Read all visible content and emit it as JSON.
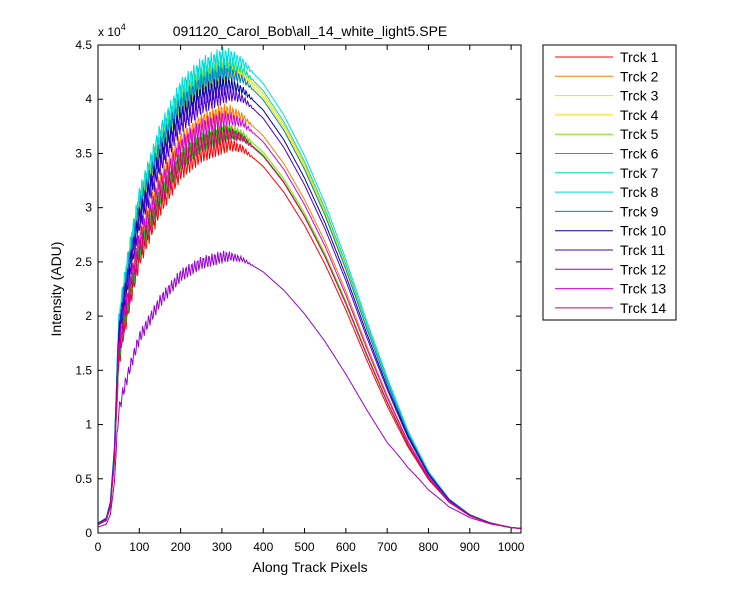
{
  "chart_data": {
    "type": "line",
    "title": "091120_Carol_Bob\\all_14_white_light5.SPE",
    "xlabel": "Along Track Pixels",
    "ylabel": "Intensity (ADU)",
    "y_multiplier": "x 10",
    "y_multiplier_exp": "4",
    "xlim": [
      0,
      1024
    ],
    "ylim": [
      0,
      45000
    ],
    "xticks": [
      0,
      100,
      200,
      300,
      400,
      500,
      600,
      700,
      800,
      900,
      1000
    ],
    "yticks": [
      0,
      5000,
      10000,
      15000,
      20000,
      25000,
      30000,
      35000,
      40000,
      45000
    ],
    "ytick_labels": [
      "0",
      "0.5",
      "1",
      "1.5",
      "2",
      "2.5",
      "3",
      "3.5",
      "4",
      "4.5"
    ],
    "grid": false,
    "legend_position": "outside-right",
    "x": [
      0,
      20,
      30,
      40,
      45,
      50,
      60,
      80,
      100,
      150,
      200,
      250,
      300,
      320,
      350,
      400,
      450,
      500,
      550,
      600,
      650,
      700,
      750,
      800,
      850,
      900,
      950,
      1000,
      1024
    ],
    "series": [
      {
        "name": "Trck 1",
        "color": "#ff0000",
        "peak": 35800
      },
      {
        "name": "Trck 2",
        "color": "#ff7f00",
        "peak": 38800
      },
      {
        "name": "Trck 3",
        "color": "#e6e600",
        "peak": 42600
      },
      {
        "name": "Trck 4",
        "color": "#ffd700",
        "peak": 42900
      },
      {
        "name": "Trck 5",
        "color": "#80e000",
        "peak": 37200
      },
      {
        "name": "Trck 6",
        "color": "#00d200",
        "peak": 36900
      },
      {
        "name": "Trck 7",
        "color": "#00dca0",
        "peak": 43200
      },
      {
        "name": "Trck 8",
        "color": "#00dcdc",
        "peak": 43900
      },
      {
        "name": "Trck 9",
        "color": "#007fd2",
        "peak": 42300
      },
      {
        "name": "Trck 10",
        "color": "#0000a0",
        "peak": 41300
      },
      {
        "name": "Trck 11",
        "color": "#4b00d2",
        "peak": 40500
      },
      {
        "name": "Trck 12",
        "color": "#9600d2",
        "peak": 25500
      },
      {
        "name": "Trck 13",
        "color": "#d200d2",
        "peak": 38200
      },
      {
        "name": "Trck 14",
        "color": "#d2006e",
        "peak": 36800
      }
    ],
    "profile": [
      800,
      1200,
      2500,
      7000,
      12000,
      16500,
      19000,
      23000,
      26500,
      31500,
      35000,
      36700,
      37500,
      37600,
      37200,
      35500,
      33000,
      29800,
      26000,
      21600,
      16800,
      12300,
      8300,
      5100,
      2900,
      1600,
      900,
      500,
      420
    ]
  }
}
